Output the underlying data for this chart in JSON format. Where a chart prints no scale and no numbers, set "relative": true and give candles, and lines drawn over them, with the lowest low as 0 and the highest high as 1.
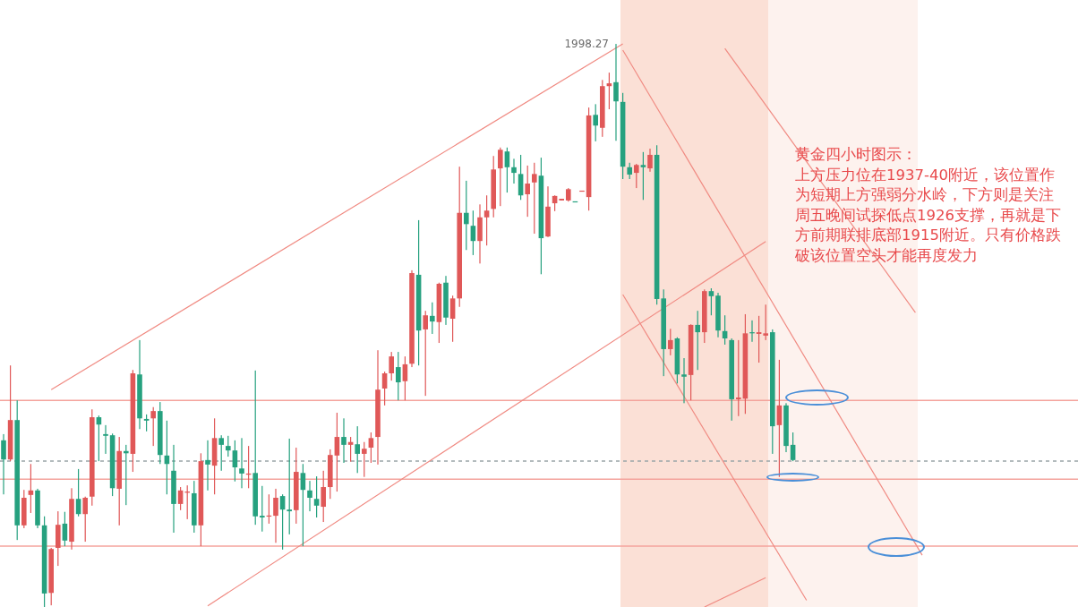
{
  "chart_data": {
    "type": "candlestick",
    "relative": true,
    "tick_labels": false,
    "categories": [
      null,
      null,
      null,
      null,
      null,
      null,
      null,
      null,
      null,
      null,
      null,
      null,
      null,
      null,
      null,
      null,
      null,
      null,
      null,
      null,
      null,
      null,
      null,
      null,
      null,
      null,
      null,
      null,
      null,
      null,
      null,
      null,
      null,
      null,
      null,
      null,
      null,
      null,
      null,
      null,
      null,
      null,
      null,
      null,
      null,
      null,
      null,
      null,
      null,
      null,
      null,
      null,
      null,
      null,
      null,
      null,
      null,
      null,
      null,
      null,
      null,
      null,
      null,
      null,
      null,
      null,
      null,
      null,
      null,
      null,
      null,
      null,
      null,
      null,
      null,
      null,
      null,
      null,
      null,
      null,
      null,
      null,
      null,
      null,
      null,
      null,
      null,
      null,
      null,
      null,
      null,
      null,
      null,
      null,
      null,
      null,
      null,
      null,
      null,
      null,
      null,
      null,
      null,
      null,
      null,
      null,
      null,
      null,
      null,
      null,
      null,
      null,
      null,
      null,
      null,
      null,
      null,
      null,
      null,
      null,
      null,
      null,
      null,
      null,
      null,
      null,
      null,
      null,
      null,
      null,
      null,
      null,
      null,
      null,
      null,
      null,
      null,
      null
    ],
    "ohlc": [
      [
        0.296,
        0.307,
        0.2,
        0.262
      ],
      [
        0.262,
        0.429,
        0.259,
        0.332
      ],
      [
        0.332,
        0.367,
        0.119,
        0.145
      ],
      [
        0.145,
        0.208,
        0.14,
        0.194
      ],
      [
        0.199,
        0.254,
        0.167,
        0.207
      ],
      [
        0.207,
        0.21,
        0.14,
        0.145
      ],
      [
        0.145,
        0.161,
        0,
        0.024
      ],
      [
        0.025,
        0.105,
        0.003,
        0.103
      ],
      [
        0.105,
        0.17,
        0.073,
        0.146
      ],
      [
        0.148,
        0.169,
        0.108,
        0.118
      ],
      [
        0.116,
        0.211,
        0.102,
        0.192
      ],
      [
        0.192,
        0.245,
        0.161,
        0.165
      ],
      [
        0.165,
        0.196,
        0.116,
        0.194
      ],
      [
        0.196,
        0.351,
        0.18,
        0.337
      ],
      [
        0.337,
        0.34,
        0.259,
        0.324
      ],
      [
        0.307,
        0.323,
        0.272,
        0.304
      ],
      [
        0.305,
        0.308,
        0.197,
        0.211
      ],
      [
        0.21,
        0.302,
        0.145,
        0.277
      ],
      [
        0.277,
        0.288,
        0.181,
        0.273
      ],
      [
        0.272,
        0.421,
        0.24,
        0.415
      ],
      [
        0.413,
        0.474,
        0.316,
        0.335
      ],
      [
        0.334,
        0.342,
        0.312,
        0.331
      ],
      [
        0.335,
        0.355,
        0.286,
        0.348
      ],
      [
        0.348,
        0.364,
        0.254,
        0.27
      ],
      [
        0.269,
        0.331,
        0.2,
        0.254
      ],
      [
        0.242,
        0.288,
        0.132,
        0.183
      ],
      [
        0.183,
        0.213,
        0.172,
        0.207
      ],
      [
        0.203,
        0.216,
        0.156,
        0.205
      ],
      [
        0.202,
        0.224,
        0.132,
        0.145
      ],
      [
        0.145,
        0.273,
        0.108,
        0.259
      ],
      [
        0.261,
        0.296,
        0.207,
        0.253
      ],
      [
        0.251,
        0.335,
        0.2,
        0.3
      ],
      [
        0.3,
        0.305,
        0.242,
        0.288
      ],
      [
        0.286,
        0.304,
        0.267,
        0.278
      ],
      [
        0.278,
        0.296,
        0.223,
        0.248
      ],
      [
        0.246,
        0.3,
        0.211,
        0.237
      ],
      [
        0.235,
        0.286,
        0.211,
        0.237
      ],
      [
        0.238,
        0.42,
        0.146,
        0.161
      ],
      [
        0.162,
        0.215,
        0.134,
        0.159
      ],
      [
        0.161,
        0.2,
        0.148,
        0.162
      ],
      [
        0.162,
        0.21,
        0.114,
        0.194
      ],
      [
        0.197,
        0.2,
        0.102,
        0.173
      ],
      [
        0.173,
        0.299,
        0.129,
        0.17
      ],
      [
        0.172,
        0.283,
        0.148,
        0.24
      ],
      [
        0.238,
        0.254,
        0.108,
        0.208
      ],
      [
        0.207,
        0.224,
        0.17,
        0.194
      ],
      [
        0.192,
        0.232,
        0.159,
        0.18
      ],
      [
        0.178,
        0.242,
        0.151,
        0.213
      ],
      [
        0.213,
        0.28,
        0.192,
        0.27
      ],
      [
        0.269,
        0.345,
        0.205,
        0.302
      ],
      [
        0.302,
        0.335,
        0.256,
        0.288
      ],
      [
        0.288,
        0.302,
        0.258,
        0.293
      ],
      [
        0.289,
        0.321,
        0.238,
        0.272
      ],
      [
        0.272,
        0.293,
        0.231,
        0.281
      ],
      [
        0.283,
        0.31,
        0.256,
        0.3
      ],
      [
        0.302,
        0.456,
        0.253,
        0.386
      ],
      [
        0.388,
        0.418,
        0.358,
        0.415
      ],
      [
        0.415,
        0.453,
        0.402,
        0.445
      ],
      [
        0.426,
        0.453,
        0.367,
        0.399
      ],
      [
        0.401,
        0.445,
        0.367,
        0.431
      ],
      [
        0.432,
        0.598,
        0.426,
        0.593
      ],
      [
        0.59,
        0.687,
        0.429,
        0.491
      ],
      [
        0.493,
        0.526,
        0.375,
        0.518
      ],
      [
        0.517,
        0.541,
        0.485,
        0.507
      ],
      [
        0.506,
        0.576,
        0.469,
        0.574
      ],
      [
        0.576,
        0.588,
        0.501,
        0.514
      ],
      [
        0.512,
        0.553,
        0.471,
        0.548
      ],
      [
        0.548,
        0.782,
        0.533,
        0.7
      ],
      [
        0.7,
        0.757,
        0.634,
        0.68
      ],
      [
        0.677,
        0.704,
        0.625,
        0.65
      ],
      [
        0.65,
        0.715,
        0.61,
        0.692
      ],
      [
        0.692,
        0.731,
        0.642,
        0.704
      ],
      [
        0.707,
        0.801,
        0.692,
        0.777
      ],
      [
        0.779,
        0.816,
        0.712,
        0.812
      ],
      [
        0.809,
        0.816,
        0.736,
        0.781
      ],
      [
        0.781,
        0.796,
        0.752,
        0.771
      ],
      [
        0.769,
        0.803,
        0.723,
        0.731
      ],
      [
        0.733,
        0.784,
        0.693,
        0.752
      ],
      [
        0.754,
        0.789,
        0.663,
        0.769
      ],
      [
        0.766,
        0.798,
        0.591,
        0.655
      ],
      [
        0.658,
        0.747,
        0.657,
        0.711
      ],
      [
        0.717,
        0.731,
        0.703,
        0.73
      ],
      [
        0.722,
        0.725,
        0.722,
        0.725
      ],
      [
        0.722,
        0.744,
        0.72,
        0.742
      ],
      [
        0.72,
        0.72,
        0.719,
        0.719
      ],
      [
        0.738,
        0.739,
        0.738,
        0.739
      ],
      [
        0.728,
        0.887,
        0.704,
        0.873
      ],
      [
        0.874,
        0.893,
        0.827,
        0.855
      ],
      [
        0.851,
        0.936,
        0.835,
        0.925
      ],
      [
        0.925,
        0.949,
        0.884,
        0.93
      ],
      [
        0.932,
        1,
        0.828,
        0.898
      ],
      [
        0.897,
        0.913,
        0.76,
        0.782
      ],
      [
        0.781,
        0.789,
        0.76,
        0.768
      ],
      [
        0.771,
        0.787,
        0.744,
        0.785
      ],
      [
        0.785,
        0.808,
        0.723,
        0.781
      ],
      [
        0.779,
        0.814,
        0.773,
        0.803
      ],
      [
        0.803,
        0.82,
        0.537,
        0.547
      ],
      [
        0.548,
        0.564,
        0.41,
        0.458
      ],
      [
        0.458,
        0.494,
        0.447,
        0.474
      ],
      [
        0.477,
        0.479,
        0.397,
        0.413
      ],
      [
        0.413,
        0.442,
        0.362,
        0.409
      ],
      [
        0.412,
        0.502,
        0.367,
        0.501
      ],
      [
        0.501,
        0.526,
        0.421,
        0.488
      ],
      [
        0.488,
        0.564,
        0.469,
        0.561
      ],
      [
        0.561,
        0.566,
        0.518,
        0.552
      ],
      [
        0.553,
        0.558,
        0.479,
        0.491
      ],
      [
        0.49,
        0.518,
        0.466,
        0.477
      ],
      [
        0.474,
        0.477,
        0.331,
        0.369
      ],
      [
        0.369,
        0.474,
        0.339,
        0.372
      ],
      [
        0.37,
        0.52,
        0.343,
        0.486
      ],
      [
        0.488,
        0.509,
        0.471,
        0.486
      ],
      [
        0.485,
        0.517,
        0.434,
        0.488
      ],
      [
        0.482,
        0.537,
        0.474,
        0.486
      ],
      [
        0.488,
        0.493,
        0.272,
        0.321
      ],
      [
        0.323,
        0.439,
        0.231,
        0.358
      ],
      [
        0.358,
        0.362,
        0.275,
        0.286
      ],
      [
        0.288,
        0.31,
        0.259,
        0.261
      ],
      null,
      null,
      null,
      null,
      null,
      null,
      null,
      null,
      null,
      null,
      null,
      null,
      null,
      null,
      null,
      null,
      null,
      null,
      null,
      null,
      null
    ],
    "colors": [
      "#26a17f",
      "#e05858",
      "#26a17f",
      "#e05858",
      "#e05858",
      "#26a17f",
      "#26a17f",
      "#e05858",
      "#e05858",
      "#26a17f",
      "#e05858",
      "#26a17f",
      "#e05858",
      "#e05858",
      "#26a17f",
      "#26a17f",
      "#26a17f",
      "#e05858",
      "#26a17f",
      "#e05858",
      "#26a17f",
      "#26a17f",
      "#e05858",
      "#26a17f",
      "#26a17f",
      "#26a17f",
      "#e05858",
      "#e05858",
      "#26a17f",
      "#e05858",
      "#26a17f",
      "#e05858",
      "#26a17f",
      "#26a17f",
      "#26a17f",
      "#26a17f",
      "#e05858",
      "#26a17f",
      "#26a17f",
      "#e05858",
      "#e05858",
      "#26a17f",
      "#26a17f",
      "#e05858",
      "#26a17f",
      "#26a17f",
      "#26a17f",
      "#e05858",
      "#e05858",
      "#e05858",
      "#26a17f",
      "#e05858",
      "#26a17f",
      "#e05858",
      "#e05858",
      "#e05858",
      "#e05858",
      "#e05858",
      "#26a17f",
      "#e05858",
      "#e05858",
      "#26a17f",
      "#e05858",
      "#26a17f",
      "#e05858",
      "#26a17f",
      "#e05858",
      "#e05858",
      "#26a17f",
      "#26a17f",
      "#e05858",
      "#e05858",
      "#e05858",
      "#e05858",
      "#26a17f",
      "#26a17f",
      "#26a17f",
      "#e05858",
      "#e05858",
      "#26a17f",
      "#e05858",
      "#e05858",
      "#e05858",
      "#e05858",
      "#26a17f",
      "#e05858",
      "#e05858",
      "#26a17f",
      "#e05858",
      "#e05858",
      "#26a17f",
      "#26a17f",
      "#26a17f",
      "#e05858",
      "#26a17f",
      "#e05858",
      "#26a17f",
      "#26a17f",
      "#e05858",
      "#26a17f",
      "#26a17f",
      "#e05858",
      "#26a17f",
      "#e05858",
      "#26a17f",
      "#26a17f",
      "#26a17f",
      "#26a17f",
      "#e05858",
      "#e05858",
      "#26a17f",
      "#e05858",
      "#e05858",
      "#26a17f",
      "#e05858",
      "#26a17f",
      "#26a17f",
      null,
      null,
      null,
      null,
      null,
      null,
      null,
      null,
      null,
      null,
      null,
      null,
      null,
      null,
      null,
      null,
      null,
      null,
      null,
      null,
      null
    ],
    "series": [
      {
        "type": "line",
        "color": "#f08a82",
        "values": [
          null,
          null,
          null,
          null,
          null,
          null,
          null,
          0.386,
          null,
          null,
          null,
          null,
          null,
          null,
          null,
          null,
          null,
          null,
          null,
          null,
          null,
          null,
          null,
          null,
          null,
          null,
          null,
          null,
          null,
          null,
          null,
          null,
          null,
          null,
          null,
          null,
          null,
          null,
          null,
          null,
          null,
          null,
          null,
          null,
          null,
          null,
          null,
          null,
          null,
          null,
          null,
          null,
          null,
          null,
          null,
          null,
          null,
          null,
          null,
          null,
          null,
          null,
          null,
          null,
          null,
          null,
          null,
          null,
          null,
          null,
          null,
          null,
          null,
          null,
          null,
          null,
          null,
          null,
          null,
          null,
          null,
          null,
          null,
          null,
          null,
          null,
          null,
          null,
          null,
          null,
          null,
          1,
          null,
          null,
          null,
          null,
          null,
          null,
          null,
          null,
          null,
          null,
          null,
          null,
          null,
          null,
          null,
          null,
          null,
          null,
          null,
          null,
          null,
          null,
          null,
          null,
          null,
          null,
          null,
          null,
          null,
          null,
          null,
          null,
          null,
          null,
          null,
          null,
          null,
          null,
          null,
          null,
          null,
          null,
          null,
          null,
          null,
          null
        ]
      },
      {
        "type": "line",
        "color": "#f08a82",
        "values": [
          null,
          null,
          null,
          null,
          null,
          null,
          null,
          null,
          null,
          null,
          null,
          null,
          null,
          null,
          null,
          null,
          null,
          null,
          null,
          null,
          null,
          null,
          null,
          null,
          null,
          null,
          null,
          null,
          null,
          null,
          0.002,
          null,
          null,
          null,
          null,
          null,
          null,
          null,
          null,
          null,
          null,
          null,
          null,
          null,
          null,
          null,
          null,
          null,
          null,
          null,
          null,
          null,
          null,
          null,
          null,
          null,
          null,
          null,
          null,
          null,
          null,
          null,
          null,
          null,
          null,
          null,
          null,
          null,
          null,
          null,
          null,
          null,
          null,
          null,
          null,
          null,
          null,
          null,
          null,
          null,
          null,
          null,
          null,
          null,
          null,
          null,
          null,
          null,
          null,
          null,
          null,
          null,
          null,
          null,
          null,
          null,
          null,
          null,
          null,
          null,
          null,
          null,
          null,
          null,
          null,
          null,
          null,
          null,
          null,
          null,
          null,
          null,
          0.649,
          null,
          null,
          null,
          null,
          null,
          null,
          null,
          null,
          null,
          null,
          null,
          null,
          null,
          null,
          null,
          null,
          null,
          null,
          null,
          null,
          null,
          null,
          null,
          null,
          null
        ]
      },
      {
        "type": "line",
        "color": "#f08a82",
        "values": [
          null,
          null,
          null,
          null,
          null,
          null,
          null,
          null,
          null,
          null,
          null,
          null,
          null,
          null,
          null,
          null,
          null,
          null,
          null,
          null,
          null,
          null,
          null,
          null,
          null,
          null,
          null,
          null,
          null,
          null,
          null,
          null,
          null,
          null,
          null,
          null,
          null,
          null,
          null,
          null,
          null,
          null,
          null,
          null,
          null,
          null,
          null,
          null,
          null,
          null,
          null,
          null,
          null,
          null,
          null,
          null,
          null,
          null,
          null,
          null,
          null,
          null,
          null,
          null,
          null,
          null,
          null,
          null,
          null,
          null,
          null,
          null,
          null,
          null,
          null,
          null,
          null,
          null,
          null,
          null,
          null,
          null,
          null,
          null,
          null,
          null,
          null,
          null,
          null,
          null,
          null,
          null,
          null,
          null,
          null,
          null,
          null,
          null,
          null,
          null,
          null,
          null,
          null,
          0,
          null,
          null,
          null,
          null,
          null,
          null,
          null,
          null,
          0.052,
          null,
          null,
          null,
          null,
          null,
          null,
          null,
          null,
          null,
          null,
          null,
          null,
          null,
          null,
          null,
          null,
          null,
          null,
          null,
          null,
          null,
          null,
          null,
          null,
          null
        ]
      },
      {
        "type": "line",
        "color": "#f08a82",
        "values": [
          null,
          null,
          null,
          null,
          null,
          null,
          null,
          null,
          null,
          null,
          null,
          null,
          null,
          null,
          null,
          null,
          null,
          null,
          null,
          null,
          null,
          null,
          null,
          null,
          null,
          null,
          null,
          null,
          null,
          null,
          null,
          null,
          null,
          null,
          null,
          null,
          null,
          null,
          null,
          null,
          null,
          null,
          null,
          null,
          null,
          null,
          null,
          null,
          null,
          null,
          null,
          null,
          null,
          null,
          null,
          null,
          null,
          null,
          null,
          null,
          null,
          null,
          null,
          null,
          null,
          null,
          null,
          null,
          null,
          null,
          null,
          null,
          null,
          null,
          null,
          null,
          null,
          null,
          null,
          null,
          null,
          null,
          null,
          null,
          null,
          null,
          null,
          null,
          null,
          null,
          null,
          0.989,
          null,
          null,
          null,
          null,
          null,
          null,
          null,
          null,
          null,
          null,
          null,
          null,
          null,
          null,
          null,
          null,
          null,
          null,
          null,
          null,
          null,
          null,
          null,
          null,
          null,
          null,
          null,
          null,
          null,
          null,
          null,
          null,
          null,
          null,
          null,
          null,
          null,
          null,
          null,
          null,
          null,
          null,
          null,
          0.092,
          null,
          null
        ]
      },
      {
        "type": "line",
        "color": "#f08a82",
        "values": [
          null,
          null,
          null,
          null,
          null,
          null,
          null,
          null,
          null,
          null,
          null,
          null,
          null,
          null,
          null,
          null,
          null,
          null,
          null,
          null,
          null,
          null,
          null,
          null,
          null,
          null,
          null,
          null,
          null,
          null,
          null,
          null,
          null,
          null,
          null,
          null,
          null,
          null,
          null,
          null,
          null,
          null,
          null,
          null,
          null,
          null,
          null,
          null,
          null,
          null,
          null,
          null,
          null,
          null,
          null,
          null,
          null,
          null,
          null,
          null,
          null,
          null,
          null,
          null,
          null,
          null,
          null,
          null,
          null,
          null,
          null,
          null,
          null,
          null,
          null,
          null,
          null,
          null,
          null,
          null,
          null,
          null,
          null,
          null,
          null,
          null,
          null,
          null,
          null,
          null,
          null,
          null,
          null,
          null,
          null,
          null,
          null,
          null,
          null,
          null,
          null,
          null,
          null,
          null,
          null,
          null,
          0.992,
          null,
          null,
          null,
          null,
          null,
          null,
          null,
          null,
          null,
          null,
          null,
          null,
          null,
          null,
          null,
          null,
          null,
          null,
          null,
          null,
          null,
          null,
          null,
          null,
          null,
          null,
          null,
          0.523,
          null,
          null,
          null
        ]
      },
      {
        "type": "line",
        "color": "#f08a82",
        "values": [
          null,
          null,
          null,
          null,
          null,
          null,
          null,
          null,
          null,
          null,
          null,
          null,
          null,
          null,
          null,
          null,
          null,
          null,
          null,
          null,
          null,
          null,
          null,
          null,
          null,
          null,
          null,
          null,
          null,
          null,
          null,
          null,
          null,
          null,
          null,
          null,
          null,
          null,
          null,
          null,
          null,
          null,
          null,
          null,
          null,
          null,
          null,
          null,
          null,
          null,
          null,
          null,
          null,
          null,
          null,
          null,
          null,
          null,
          null,
          null,
          null,
          null,
          null,
          null,
          null,
          null,
          null,
          null,
          null,
          null,
          null,
          null,
          null,
          null,
          null,
          null,
          null,
          null,
          null,
          null,
          null,
          null,
          null,
          null,
          null,
          null,
          null,
          null,
          null,
          null,
          null,
          0.555,
          null,
          null,
          null,
          null,
          null,
          null,
          null,
          null,
          null,
          null,
          null,
          null,
          null,
          null,
          null,
          null,
          null,
          null,
          null,
          null,
          null,
          null,
          null,
          null,
          null,
          null,
          0.012,
          null,
          null,
          null,
          null,
          null,
          null,
          null,
          null,
          null,
          null,
          null,
          null,
          null,
          null,
          null,
          null,
          null,
          null,
          null
        ]
      }
    ],
    "ref_lines": [
      {
        "axis": "y",
        "value": 0.367,
        "color": "#f4a39c"
      },
      {
        "axis": "y",
        "value": 0.227,
        "color": "#f4a39c"
      },
      {
        "axis": "y",
        "value": 0.108,
        "color": "#f4a39c"
      },
      {
        "axis": "y",
        "value": 0.259,
        "color": "#9aa5a8",
        "line_style": "dashed"
      }
    ],
    "annotations": [
      "1998.27",
      "黄金四小时图示：",
      "上方压力位在1937-40附近，该位置作为短期上方强弱分水岭，下方则是关注周五晚间试探低点1926支撑，再就是下方前期联排底部1915附近。只有价格跌破该位置空头才能再度发力"
    ]
  }
}
